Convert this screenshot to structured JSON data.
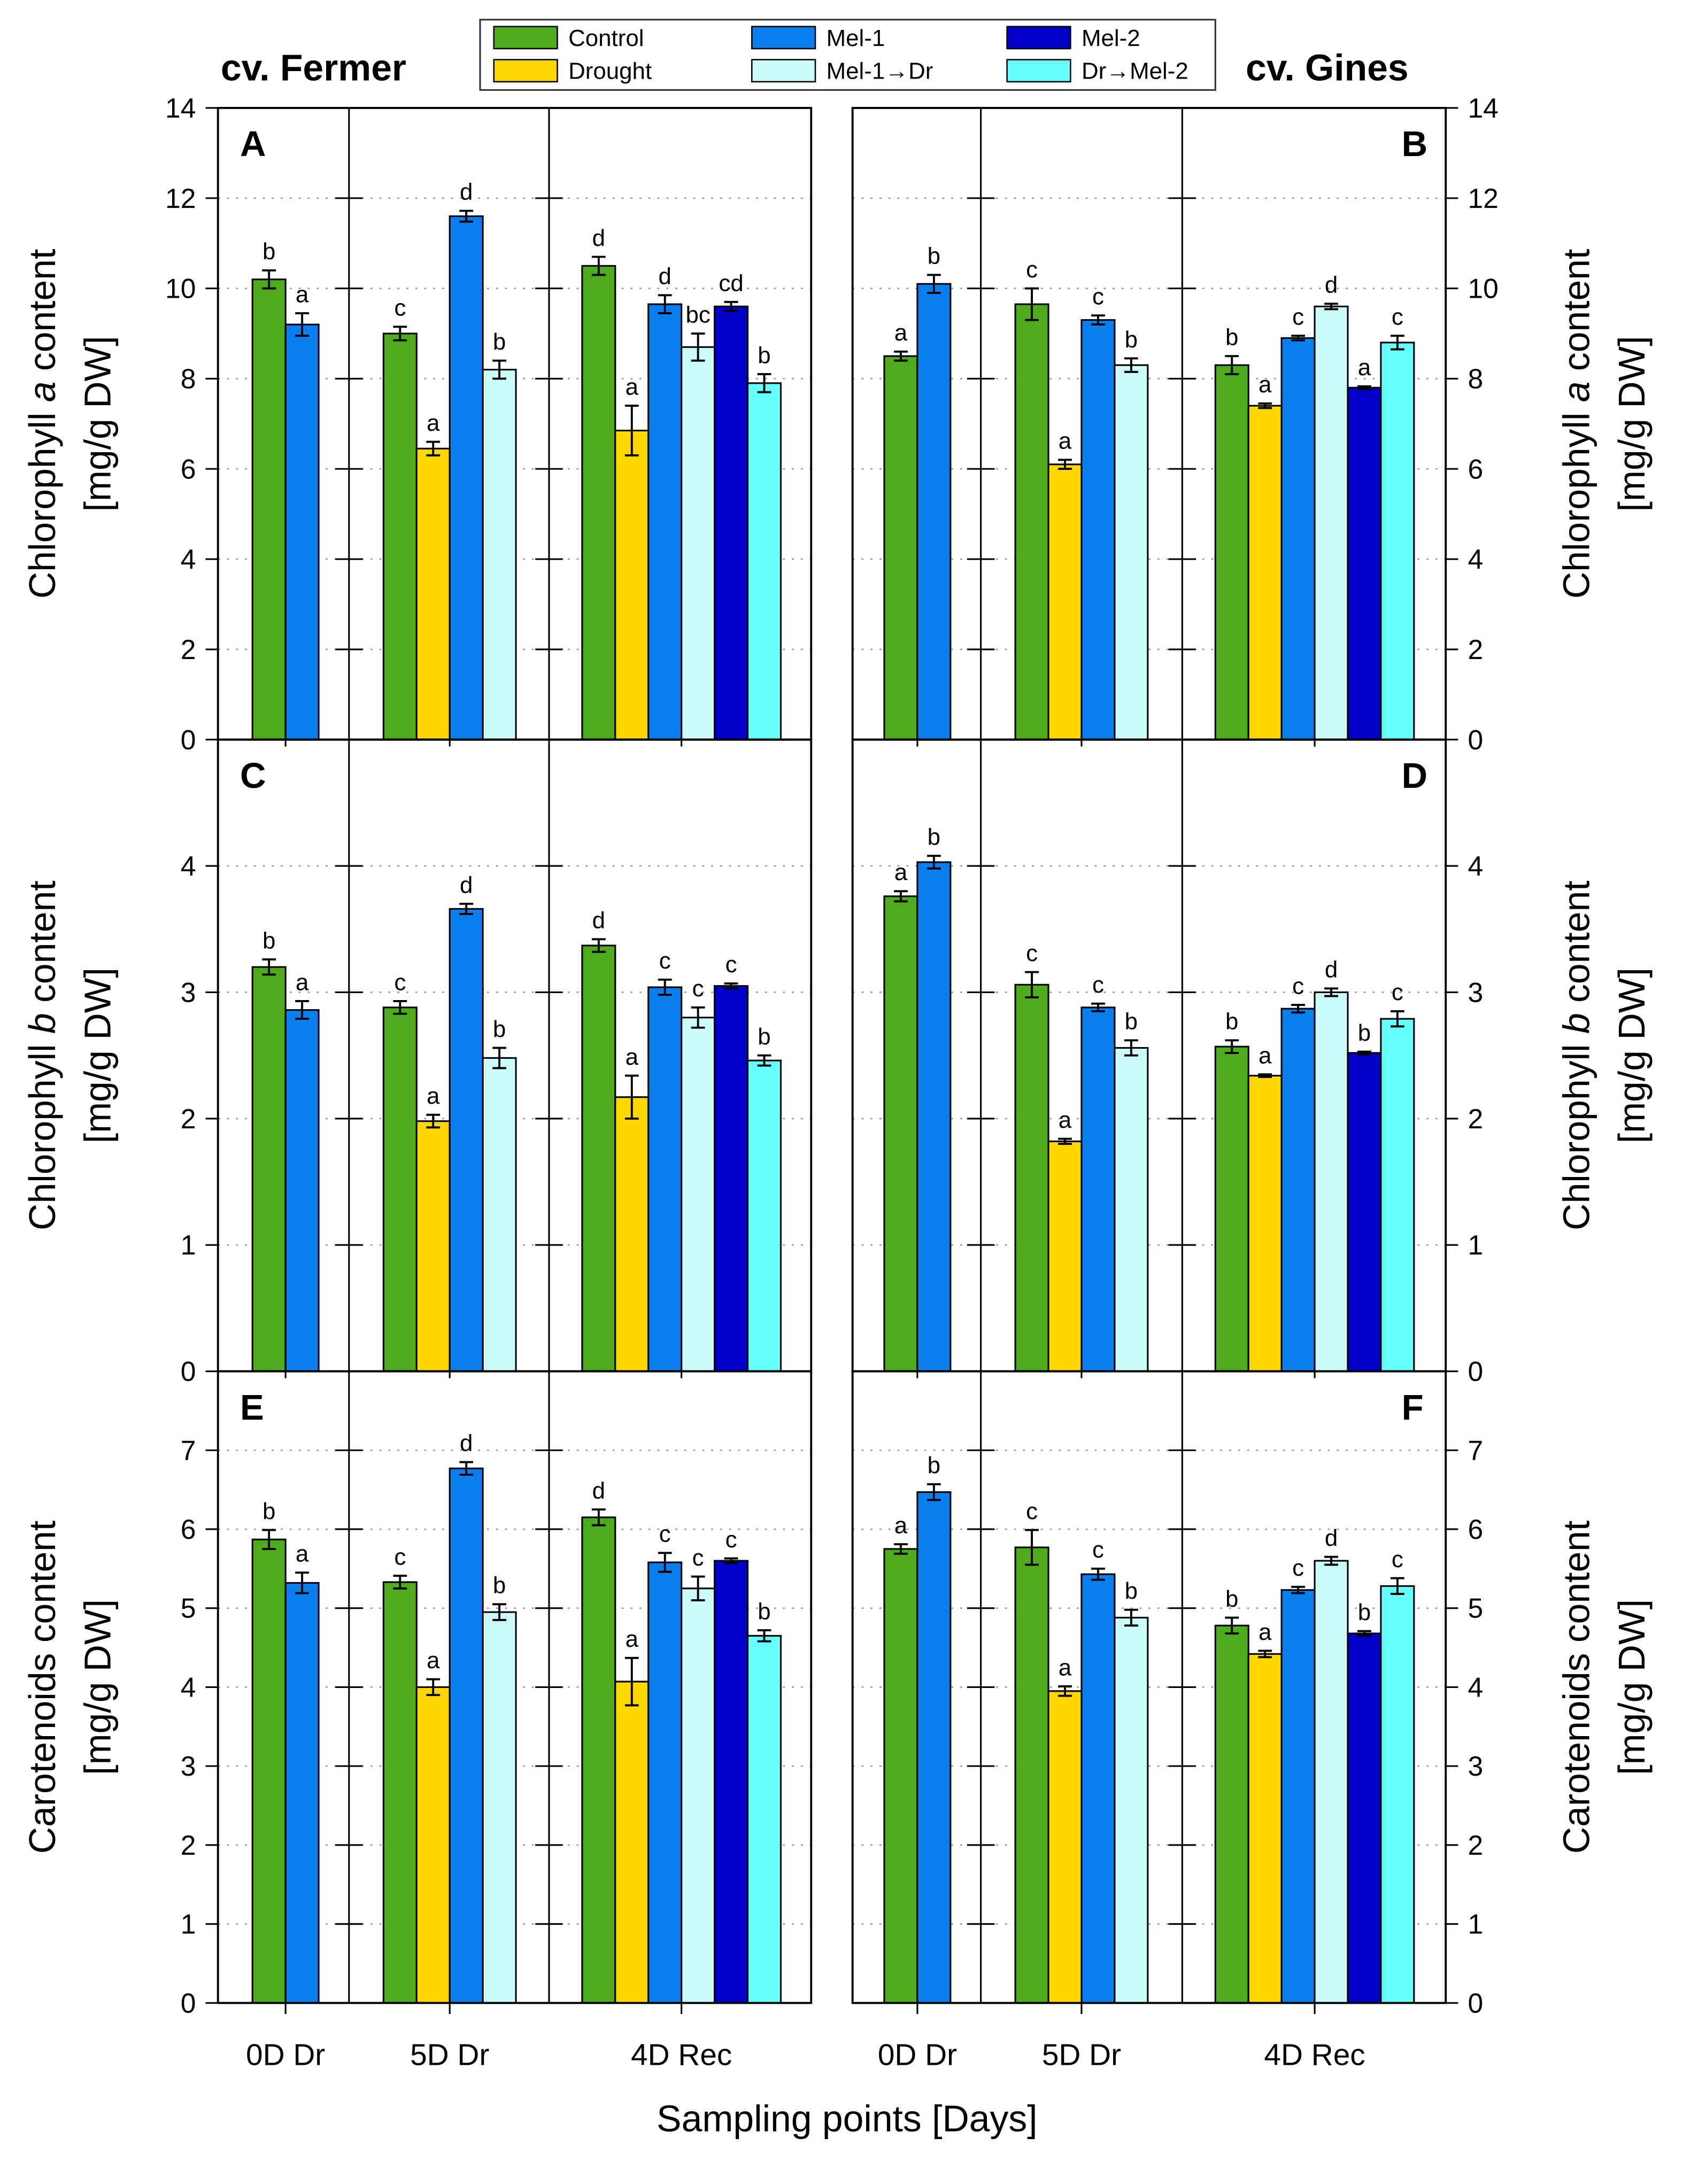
{
  "chart_data": {
    "type": "bar",
    "legend": {
      "placement": "top-center",
      "entries": [
        {
          "key": "control",
          "label": "Control",
          "color": "#4fab1c"
        },
        {
          "key": "drought",
          "label": "Drought",
          "color": "#ffd700"
        },
        {
          "key": "mel1",
          "label": "Mel-1",
          "color": "#0a7ff0"
        },
        {
          "key": "mel1dr",
          "label": "Mel-1→Dr",
          "color": "#ccfbfb"
        },
        {
          "key": "mel2",
          "label": "Mel-2",
          "color": "#0000c8"
        },
        {
          "key": "drmel2",
          "label": "Dr→Mel-2",
          "color": "#66ffff"
        }
      ]
    },
    "cultivars": [
      "cv. Fermer",
      "cv. Gines"
    ],
    "categories": [
      "0D Dr",
      "5D Dr",
      "4D Rec"
    ],
    "xlabel": "Sampling points [Days]",
    "rows": [
      {
        "ylabel_pre": "Chlorophyll ",
        "ylabel_it": "a",
        "ylabel_post": " content",
        "ylabel_unit": "[mg/g DW]",
        "ylim": [
          0,
          14
        ],
        "ticks": [
          0,
          2,
          4,
          6,
          8,
          10,
          12,
          14
        ]
      },
      {
        "ylabel_pre": "Chlorophyll ",
        "ylabel_it": "b",
        "ylabel_post": " content",
        "ylabel_unit": "[mg/g DW]",
        "ylim": [
          0,
          5
        ],
        "ticks": [
          0,
          1,
          2,
          3,
          4
        ]
      },
      {
        "ylabel_pre": "Carotenoids content",
        "ylabel_it": "",
        "ylabel_post": "",
        "ylabel_unit": "[mg/g DW]",
        "ylim": [
          0,
          8
        ],
        "ticks": [
          0,
          1,
          2,
          3,
          4,
          5,
          6,
          7
        ]
      }
    ],
    "panels": [
      {
        "letter": "A",
        "row": 0,
        "side": "left",
        "groups": [
          [
            [
              "control",
              10.2,
              0.2,
              "b"
            ],
            [
              "mel1",
              9.2,
              0.25,
              "a"
            ]
          ],
          [
            [
              "control",
              9.0,
              0.15,
              "c"
            ],
            [
              "drought",
              6.45,
              0.15,
              "a"
            ],
            [
              "mel1",
              11.6,
              0.12,
              "d"
            ],
            [
              "mel1dr",
              8.2,
              0.2,
              "b"
            ]
          ],
          [
            [
              "control",
              10.5,
              0.2,
              "d"
            ],
            [
              "drought",
              6.85,
              0.55,
              "a"
            ],
            [
              "mel1",
              9.65,
              0.2,
              "d"
            ],
            [
              "mel1dr",
              8.7,
              0.3,
              "bc"
            ],
            [
              "mel2",
              9.6,
              0.1,
              "cd"
            ],
            [
              "drmel2",
              7.9,
              0.2,
              "b"
            ]
          ]
        ]
      },
      {
        "letter": "B",
        "row": 0,
        "side": "right",
        "groups": [
          [
            [
              "control",
              8.5,
              0.1,
              "a"
            ],
            [
              "mel1",
              10.1,
              0.2,
              "b"
            ]
          ],
          [
            [
              "control",
              9.65,
              0.35,
              "c"
            ],
            [
              "drought",
              6.1,
              0.1,
              "a"
            ],
            [
              "mel1",
              9.3,
              0.1,
              "c"
            ],
            [
              "mel1dr",
              8.3,
              0.15,
              "b"
            ]
          ],
          [
            [
              "control",
              8.3,
              0.2,
              "b"
            ],
            [
              "drought",
              7.4,
              0.05,
              "a"
            ],
            [
              "mel1",
              8.9,
              0.05,
              "c"
            ],
            [
              "mel1dr",
              9.6,
              0.06,
              "d"
            ],
            [
              "mel2",
              7.8,
              0.03,
              "a"
            ],
            [
              "drmel2",
              8.8,
              0.15,
              "c"
            ]
          ]
        ]
      },
      {
        "letter": "C",
        "row": 1,
        "side": "left",
        "groups": [
          [
            [
              "control",
              3.2,
              0.06,
              "b"
            ],
            [
              "mel1",
              2.86,
              0.07,
              "a"
            ]
          ],
          [
            [
              "control",
              2.88,
              0.05,
              "c"
            ],
            [
              "drought",
              1.98,
              0.05,
              "a"
            ],
            [
              "mel1",
              3.66,
              0.04,
              "d"
            ],
            [
              "mel1dr",
              2.48,
              0.08,
              "b"
            ]
          ],
          [
            [
              "control",
              3.37,
              0.05,
              "d"
            ],
            [
              "drought",
              2.17,
              0.17,
              "a"
            ],
            [
              "mel1",
              3.04,
              0.06,
              "c"
            ],
            [
              "mel1dr",
              2.8,
              0.08,
              "c"
            ],
            [
              "mel2",
              3.05,
              0.02,
              "c"
            ],
            [
              "drmel2",
              2.46,
              0.04,
              "b"
            ]
          ]
        ]
      },
      {
        "letter": "D",
        "row": 1,
        "side": "right",
        "groups": [
          [
            [
              "control",
              3.76,
              0.04,
              "a"
            ],
            [
              "mel1",
              4.03,
              0.05,
              "b"
            ]
          ],
          [
            [
              "control",
              3.06,
              0.1,
              "c"
            ],
            [
              "drought",
              1.82,
              0.02,
              "a"
            ],
            [
              "mel1",
              2.88,
              0.03,
              "c"
            ],
            [
              "mel1dr",
              2.56,
              0.06,
              "b"
            ]
          ],
          [
            [
              "control",
              2.57,
              0.05,
              "b"
            ],
            [
              "drought",
              2.34,
              0.01,
              "a"
            ],
            [
              "mel1",
              2.87,
              0.03,
              "c"
            ],
            [
              "mel1dr",
              3.0,
              0.03,
              "d"
            ],
            [
              "mel2",
              2.52,
              0.01,
              "b"
            ],
            [
              "drmel2",
              2.79,
              0.06,
              "c"
            ]
          ]
        ]
      },
      {
        "letter": "E",
        "row": 2,
        "side": "left",
        "groups": [
          [
            [
              "control",
              5.87,
              0.12,
              "b"
            ],
            [
              "mel1",
              5.32,
              0.13,
              "a"
            ]
          ],
          [
            [
              "control",
              5.33,
              0.08,
              "c"
            ],
            [
              "drought",
              4.0,
              0.1,
              "a"
            ],
            [
              "mel1",
              6.77,
              0.08,
              "d"
            ],
            [
              "mel1dr",
              4.95,
              0.1,
              "b"
            ]
          ],
          [
            [
              "control",
              6.15,
              0.1,
              "d"
            ],
            [
              "drought",
              4.07,
              0.3,
              "a"
            ],
            [
              "mel1",
              5.58,
              0.12,
              "c"
            ],
            [
              "mel1dr",
              5.25,
              0.15,
              "c"
            ],
            [
              "mel2",
              5.6,
              0.03,
              "c"
            ],
            [
              "drmel2",
              4.65,
              0.07,
              "b"
            ]
          ]
        ]
      },
      {
        "letter": "F",
        "row": 2,
        "side": "right",
        "groups": [
          [
            [
              "control",
              5.75,
              0.06,
              "a"
            ],
            [
              "mel1",
              6.47,
              0.1,
              "b"
            ]
          ],
          [
            [
              "control",
              5.77,
              0.22,
              "c"
            ],
            [
              "drought",
              3.95,
              0.06,
              "a"
            ],
            [
              "mel1",
              5.43,
              0.07,
              "c"
            ],
            [
              "mel1dr",
              4.88,
              0.1,
              "b"
            ]
          ],
          [
            [
              "control",
              4.78,
              0.1,
              "b"
            ],
            [
              "drought",
              4.42,
              0.04,
              "a"
            ],
            [
              "mel1",
              5.23,
              0.04,
              "c"
            ],
            [
              "mel1dr",
              5.6,
              0.05,
              "d"
            ],
            [
              "mel2",
              4.68,
              0.03,
              "b"
            ],
            [
              "drmel2",
              5.28,
              0.1,
              "c"
            ]
          ]
        ]
      }
    ]
  }
}
